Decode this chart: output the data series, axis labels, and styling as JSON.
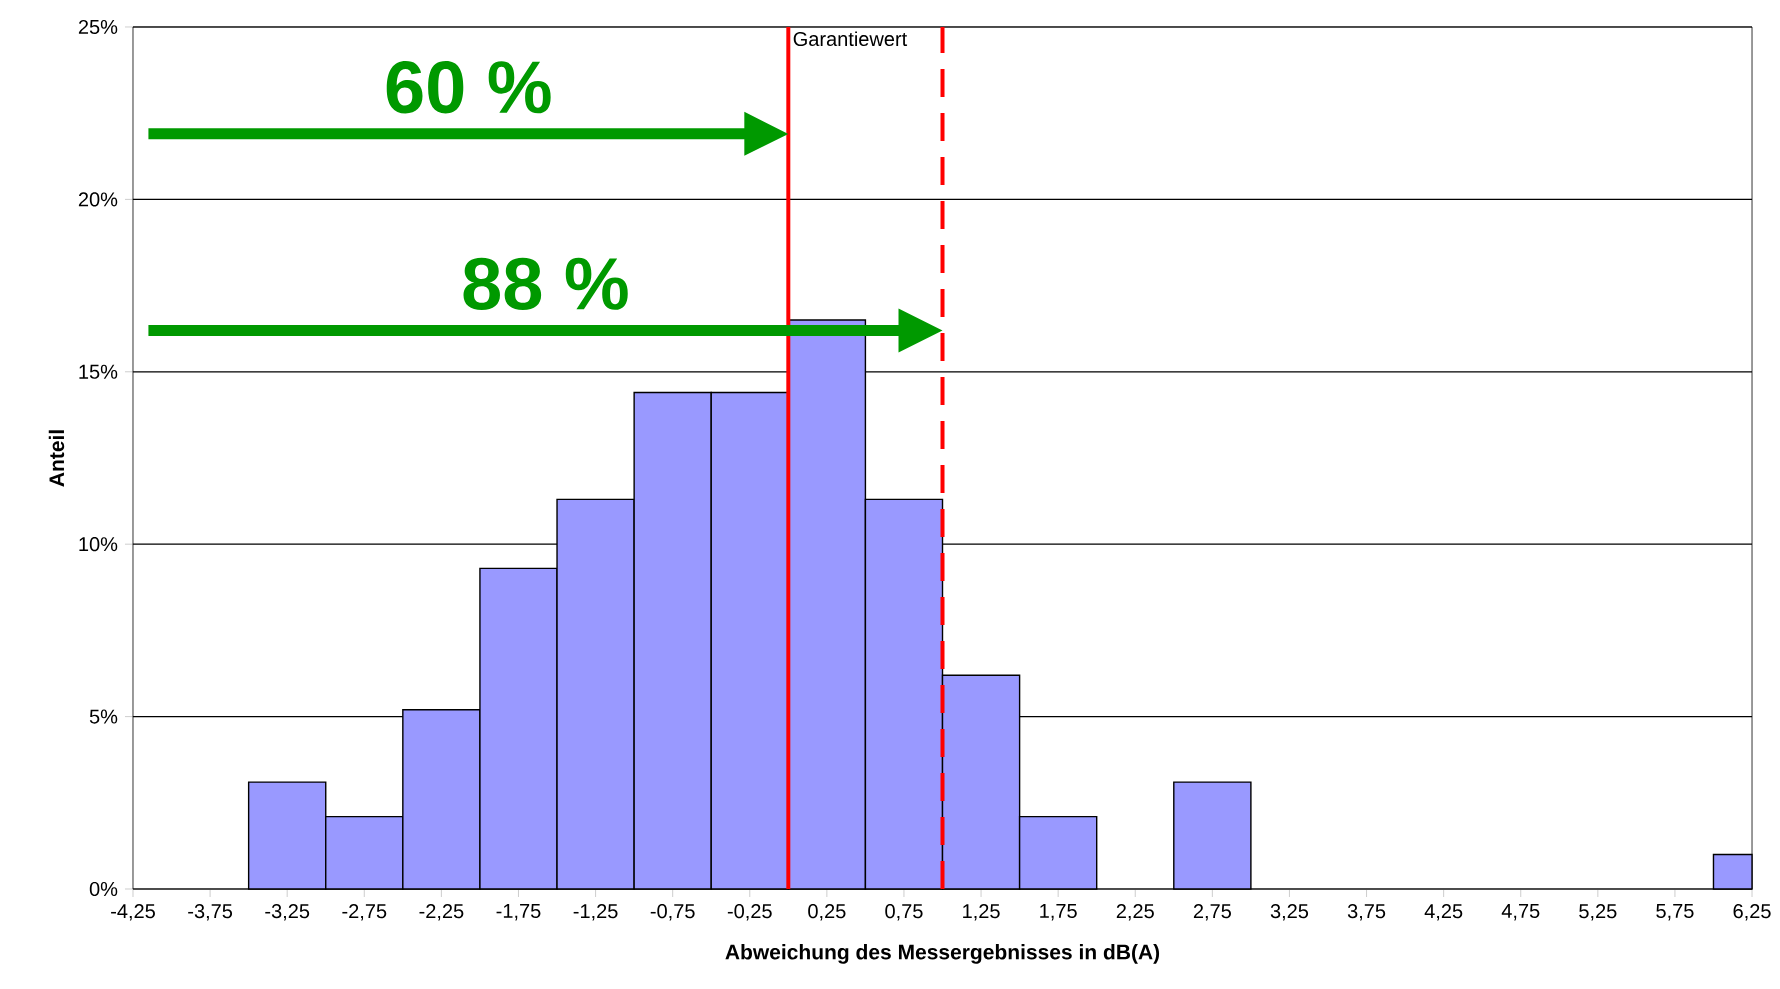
{
  "chart_data": {
    "type": "histogram",
    "xlabel": "Abweichung des Messergebnisses  in dB(A)",
    "ylabel": "Anteil",
    "bins": [
      -3.5,
      -3.0,
      -2.5,
      -2.0,
      -1.5,
      -1.0,
      -0.5,
      0.0,
      0.5,
      1.0,
      1.5,
      2.0,
      2.5,
      3.0,
      6.0,
      6.25
    ],
    "values": [
      3.1,
      2.1,
      5.2,
      9.3,
      11.3,
      14.4,
      14.4,
      16.5,
      11.3,
      6.2,
      2.1,
      0,
      3.1,
      0,
      1.0
    ],
    "color": "#9999ff",
    "xlim": [
      -4.25,
      6.25
    ],
    "xticks": [
      {
        "value": -4.25,
        "label": "-4,25"
      },
      {
        "value": -3.75,
        "label": "-3,75"
      },
      {
        "value": -3.25,
        "label": "-3,25"
      },
      {
        "value": -2.75,
        "label": "-2,75"
      },
      {
        "value": -2.25,
        "label": "-2,25"
      },
      {
        "value": -1.75,
        "label": "-1,75"
      },
      {
        "value": -1.25,
        "label": "-1,25"
      },
      {
        "value": -0.75,
        "label": "-0,75"
      },
      {
        "value": -0.25,
        "label": "-0,25"
      },
      {
        "value": 0.25,
        "label": "0,25"
      },
      {
        "value": 0.75,
        "label": "0,75"
      },
      {
        "value": 1.25,
        "label": "1,25"
      },
      {
        "value": 1.75,
        "label": "1,75"
      },
      {
        "value": 2.25,
        "label": "2,25"
      },
      {
        "value": 2.75,
        "label": "2,75"
      },
      {
        "value": 3.25,
        "label": "3,25"
      },
      {
        "value": 3.75,
        "label": "3,75"
      },
      {
        "value": 4.25,
        "label": "4,25"
      },
      {
        "value": 4.75,
        "label": "4,75"
      },
      {
        "value": 5.25,
        "label": "5,25"
      },
      {
        "value": 5.75,
        "label": "5,75"
      },
      {
        "value": 6.25,
        "label": "6,25"
      }
    ],
    "ylim": [
      0,
      25
    ],
    "yticks": [
      {
        "value": 0,
        "label": "0%"
      },
      {
        "value": 5,
        "label": "5%"
      },
      {
        "value": 10,
        "label": "10%"
      },
      {
        "value": 15,
        "label": "15%"
      },
      {
        "value": 20,
        "label": "20%"
      },
      {
        "value": 25,
        "label": "25%"
      }
    ],
    "grid": "y",
    "ref_lines": [
      {
        "axis": "x",
        "value": 0,
        "label": "Garantiewert",
        "color": "#ff0000",
        "line_style": "solid"
      },
      {
        "axis": "x",
        "value": 1,
        "color": "#ff0000",
        "line_style": "dashed"
      }
    ],
    "annotations": [
      "60 %",
      "88 %"
    ]
  }
}
